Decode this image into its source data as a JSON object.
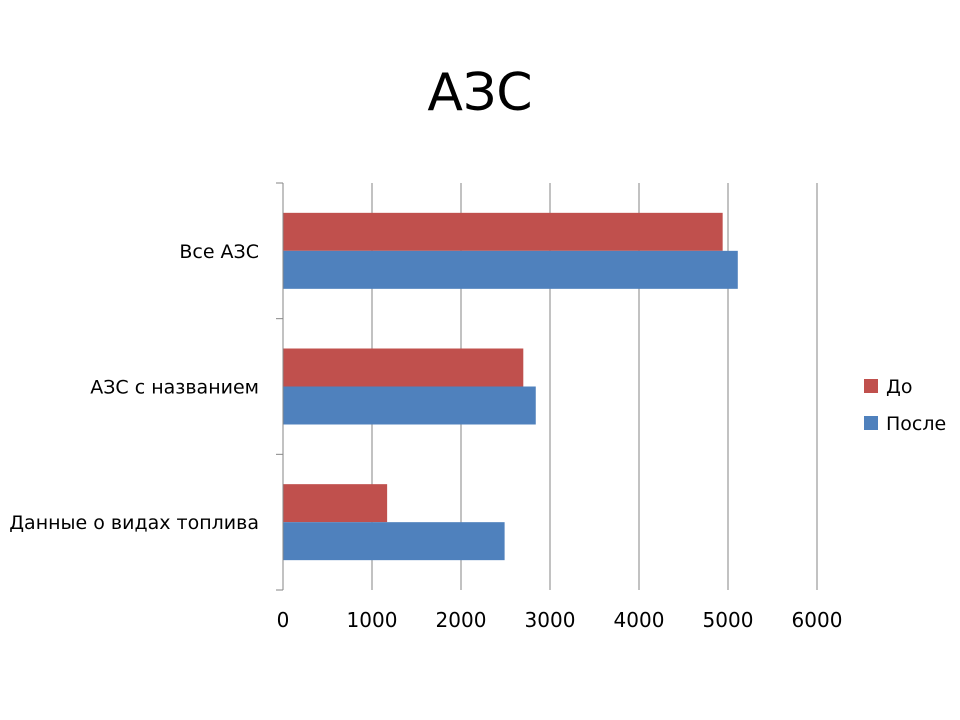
{
  "slide": {
    "title": "АЗС"
  },
  "chart_data": {
    "type": "bar",
    "orientation": "horizontal",
    "title": "АЗС",
    "categories": [
      "Все АЗС",
      "АЗС с названием",
      "Данные о видах топлива"
    ],
    "series": [
      {
        "name": "До",
        "color": "#C0504D",
        "values": [
          4940,
          2700,
          1170
        ]
      },
      {
        "name": "После",
        "color": "#4F81BD",
        "values": [
          5110,
          2840,
          2490
        ]
      }
    ],
    "xlim": [
      0,
      6000
    ],
    "xticks": [
      0,
      1000,
      2000,
      3000,
      4000,
      5000,
      6000
    ],
    "grid": true,
    "legend_position": "right"
  }
}
